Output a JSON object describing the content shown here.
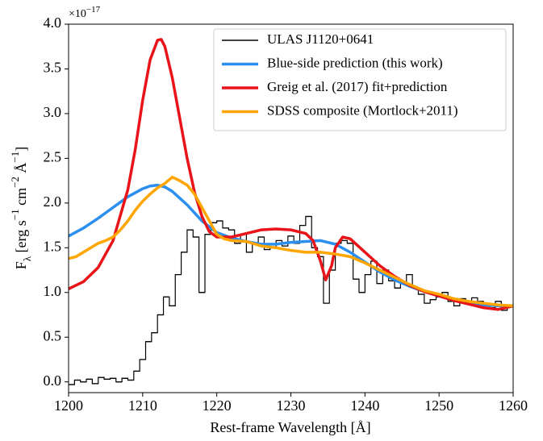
{
  "chart_data": {
    "type": "line",
    "xlabel": "Rest-frame Wavelength [Å]",
    "ylabel": [
      "F",
      "λ",
      " [erg s",
      "−1",
      " cm",
      "−2",
      " Å",
      "−1",
      "]"
    ],
    "offset_label": [
      "×10",
      "−17"
    ],
    "xlim": [
      1200,
      1260
    ],
    "xticks": [
      1200,
      1210,
      1220,
      1230,
      1240,
      1250,
      1260
    ],
    "ylim": [
      -0.12,
      4.0
    ],
    "yticks": [
      {
        "value": 0,
        "label": "0.0"
      },
      0.5,
      {
        "value": 1,
        "label": "1.0"
      },
      1.5,
      {
        "value": 2,
        "label": "2.0"
      },
      2.5,
      {
        "value": 3,
        "label": "3.0"
      },
      3.5,
      {
        "value": 4,
        "label": "4.0"
      }
    ],
    "legend": "upper right",
    "series": [
      {
        "name": "ULAS J1120+0641",
        "color": "#000000",
        "style": "steps",
        "x": [
          1200.0,
          1200.8,
          1201.6,
          1202.4,
          1203.2,
          1204.0,
          1204.8,
          1205.6,
          1206.4,
          1207.2,
          1208.0,
          1208.8,
          1209.6,
          1210.4,
          1211.2,
          1212.0,
          1212.8,
          1213.6,
          1214.4,
          1215.2,
          1216.0,
          1216.8,
          1217.6,
          1218.4,
          1219.2,
          1220.0,
          1220.8,
          1221.6,
          1222.4,
          1223.2,
          1224.0,
          1224.8,
          1225.6,
          1226.4,
          1227.2,
          1228.0,
          1228.8,
          1229.6,
          1230.4,
          1231.2,
          1232.0,
          1232.8,
          1233.6,
          1234.4,
          1235.2,
          1236.0,
          1236.8,
          1237.6,
          1238.4,
          1239.2,
          1240.0,
          1240.8,
          1241.6,
          1242.4,
          1243.2,
          1244.0,
          1244.8,
          1245.6,
          1246.4,
          1247.2,
          1248.0,
          1248.8,
          1249.6,
          1250.4,
          1251.2,
          1252.0,
          1252.8,
          1253.6,
          1254.4,
          1255.2,
          1256.0,
          1256.8,
          1257.6,
          1258.4,
          1259.2
        ],
        "values": [
          -0.03,
          0.02,
          0.0,
          0.03,
          -0.02,
          0.05,
          0.03,
          0.04,
          0.0,
          0.04,
          0.02,
          0.12,
          0.25,
          0.45,
          0.55,
          0.75,
          0.95,
          0.85,
          1.2,
          1.45,
          1.7,
          1.62,
          1.0,
          1.65,
          1.78,
          1.8,
          1.72,
          1.7,
          1.55,
          1.65,
          1.45,
          1.55,
          1.62,
          1.48,
          1.5,
          1.58,
          1.52,
          1.63,
          1.55,
          1.75,
          1.85,
          1.5,
          1.4,
          0.88,
          1.25,
          1.55,
          1.58,
          1.55,
          1.15,
          1.0,
          1.2,
          1.35,
          1.1,
          1.25,
          1.13,
          1.05,
          1.12,
          1.2,
          1.05,
          0.98,
          0.88,
          0.92,
          0.95,
          1.0,
          0.9,
          0.85,
          0.93,
          0.88,
          0.94,
          0.9,
          0.86,
          0.83,
          0.9,
          0.8,
          0.85
        ]
      },
      {
        "name": "Blue-side prediction (this work)",
        "color": "#2b8ff0",
        "x": [
          1200,
          1202,
          1204,
          1206,
          1208,
          1210,
          1211,
          1212,
          1213,
          1214,
          1216,
          1218,
          1220,
          1222,
          1224,
          1226,
          1228,
          1230,
          1232,
          1234,
          1236,
          1238,
          1240,
          1242,
          1244,
          1246,
          1248,
          1250,
          1252,
          1254,
          1256,
          1258,
          1260
        ],
        "values": [
          1.63,
          1.72,
          1.83,
          1.95,
          2.07,
          2.16,
          2.19,
          2.2,
          2.18,
          2.13,
          1.98,
          1.8,
          1.67,
          1.61,
          1.57,
          1.54,
          1.54,
          1.56,
          1.57,
          1.58,
          1.54,
          1.45,
          1.34,
          1.23,
          1.14,
          1.07,
          1.01,
          0.96,
          0.92,
          0.89,
          0.86,
          0.85,
          0.85
        ]
      },
      {
        "name": "Greig et al. (2017) fit+prediction",
        "color": "#e8141a",
        "x": [
          1200,
          1202,
          1204,
          1206,
          1208,
          1209,
          1210,
          1211,
          1212,
          1212.5,
          1213,
          1214,
          1215,
          1216,
          1217,
          1218,
          1219,
          1220,
          1222,
          1224,
          1226,
          1228,
          1230,
          1232,
          1233,
          1234,
          1234.7,
          1235.5,
          1236,
          1237,
          1238,
          1240,
          1242,
          1244,
          1246,
          1248,
          1250,
          1252,
          1254,
          1256,
          1258,
          1260
        ],
        "values": [
          1.04,
          1.12,
          1.28,
          1.58,
          2.15,
          2.6,
          3.15,
          3.6,
          3.82,
          3.83,
          3.75,
          3.4,
          2.95,
          2.5,
          2.12,
          1.85,
          1.68,
          1.62,
          1.62,
          1.66,
          1.7,
          1.71,
          1.7,
          1.66,
          1.58,
          1.35,
          1.14,
          1.3,
          1.5,
          1.62,
          1.6,
          1.45,
          1.3,
          1.18,
          1.08,
          1.01,
          0.96,
          0.91,
          0.87,
          0.83,
          0.81,
          0.85
        ]
      },
      {
        "name": "SDSS composite (Mortlock+2011)",
        "color": "#ffa500",
        "x": [
          1200,
          1201,
          1202,
          1203,
          1204,
          1205,
          1206,
          1207,
          1208,
          1209,
          1210,
          1211,
          1212,
          1213,
          1214,
          1215,
          1216,
          1217,
          1218,
          1219,
          1220,
          1221,
          1222,
          1224,
          1226,
          1228,
          1230,
          1232,
          1234,
          1236,
          1238,
          1240,
          1242,
          1244,
          1246,
          1248,
          1250,
          1252,
          1254,
          1256,
          1258,
          1260
        ],
        "values": [
          1.38,
          1.4,
          1.45,
          1.5,
          1.55,
          1.58,
          1.62,
          1.7,
          1.8,
          1.92,
          2.02,
          2.1,
          2.17,
          2.22,
          2.29,
          2.25,
          2.2,
          2.1,
          1.95,
          1.8,
          1.65,
          1.6,
          1.58,
          1.57,
          1.52,
          1.5,
          1.47,
          1.45,
          1.45,
          1.43,
          1.4,
          1.33,
          1.25,
          1.17,
          1.09,
          1.02,
          0.98,
          0.93,
          0.9,
          0.88,
          0.86,
          0.85
        ]
      }
    ]
  }
}
